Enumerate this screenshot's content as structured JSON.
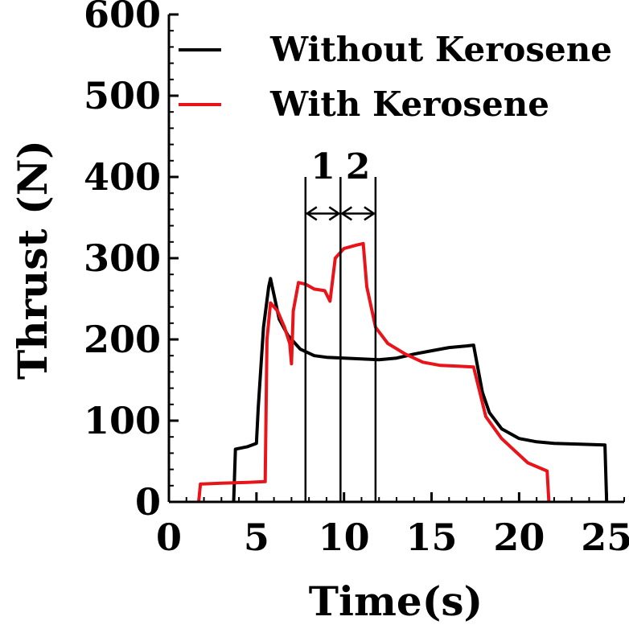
{
  "chart_data": {
    "type": "line",
    "title": "",
    "xlabel": "Time(s)",
    "ylabel": "Thrust (N)",
    "xlim": [
      0,
      26
    ],
    "ylim": [
      0,
      600
    ],
    "xticks": [
      0,
      5,
      10,
      15,
      20,
      25
    ],
    "yticks": [
      0,
      100,
      200,
      300,
      400,
      500,
      600
    ],
    "grid": false,
    "legend_position": "top-right",
    "series": [
      {
        "name": "Without Kerosene",
        "color": "#000000",
        "points": [
          [
            3.7,
            0
          ],
          [
            3.8,
            65
          ],
          [
            4.5,
            68
          ],
          [
            5.0,
            72
          ],
          [
            5.1,
            115
          ],
          [
            5.4,
            215
          ],
          [
            5.7,
            265
          ],
          [
            5.8,
            275
          ],
          [
            6.0,
            255
          ],
          [
            6.3,
            225
          ],
          [
            6.8,
            205
          ],
          [
            7.5,
            188
          ],
          [
            8.3,
            180
          ],
          [
            9.0,
            178
          ],
          [
            10.0,
            177
          ],
          [
            11.0,
            176
          ],
          [
            12.0,
            175
          ],
          [
            13.0,
            177
          ],
          [
            14.0,
            182
          ],
          [
            15.0,
            186
          ],
          [
            16.0,
            190
          ],
          [
            17.0,
            192
          ],
          [
            17.4,
            193
          ],
          [
            17.6,
            170
          ],
          [
            17.9,
            135
          ],
          [
            18.3,
            110
          ],
          [
            19.0,
            90
          ],
          [
            20.0,
            78
          ],
          [
            21.0,
            74
          ],
          [
            22.0,
            72
          ],
          [
            23.5,
            71
          ],
          [
            24.9,
            70
          ],
          [
            25.0,
            0
          ]
        ]
      },
      {
        "name": "With Kerosene",
        "color": "#e8141a",
        "points": [
          [
            1.7,
            0
          ],
          [
            1.8,
            22
          ],
          [
            3.0,
            23
          ],
          [
            4.5,
            24
          ],
          [
            5.5,
            25
          ],
          [
            5.6,
            200
          ],
          [
            5.8,
            245
          ],
          [
            6.2,
            235
          ],
          [
            6.6,
            215
          ],
          [
            6.9,
            195
          ],
          [
            7.0,
            170
          ],
          [
            7.1,
            235
          ],
          [
            7.4,
            270
          ],
          [
            7.8,
            268
          ],
          [
            8.3,
            262
          ],
          [
            8.9,
            260
          ],
          [
            9.2,
            247
          ],
          [
            9.5,
            300
          ],
          [
            10.0,
            312
          ],
          [
            10.7,
            316
          ],
          [
            11.1,
            318
          ],
          [
            11.3,
            265
          ],
          [
            11.8,
            215
          ],
          [
            12.5,
            195
          ],
          [
            13.5,
            182
          ],
          [
            14.5,
            172
          ],
          [
            15.5,
            168
          ],
          [
            16.5,
            167
          ],
          [
            17.4,
            166
          ],
          [
            17.7,
            140
          ],
          [
            18.1,
            105
          ],
          [
            19.0,
            78
          ],
          [
            19.8,
            62
          ],
          [
            20.5,
            48
          ],
          [
            21.6,
            38
          ],
          [
            21.7,
            0
          ]
        ]
      }
    ],
    "annotations": {
      "lines_x": [
        7.8,
        9.8,
        11.8
      ],
      "line_top_y": 400,
      "arrow_y": 355,
      "labels": [
        {
          "text": "1",
          "x": 8.8,
          "y": 410
        },
        {
          "text": "2",
          "x": 10.8,
          "y": 410
        }
      ]
    }
  }
}
